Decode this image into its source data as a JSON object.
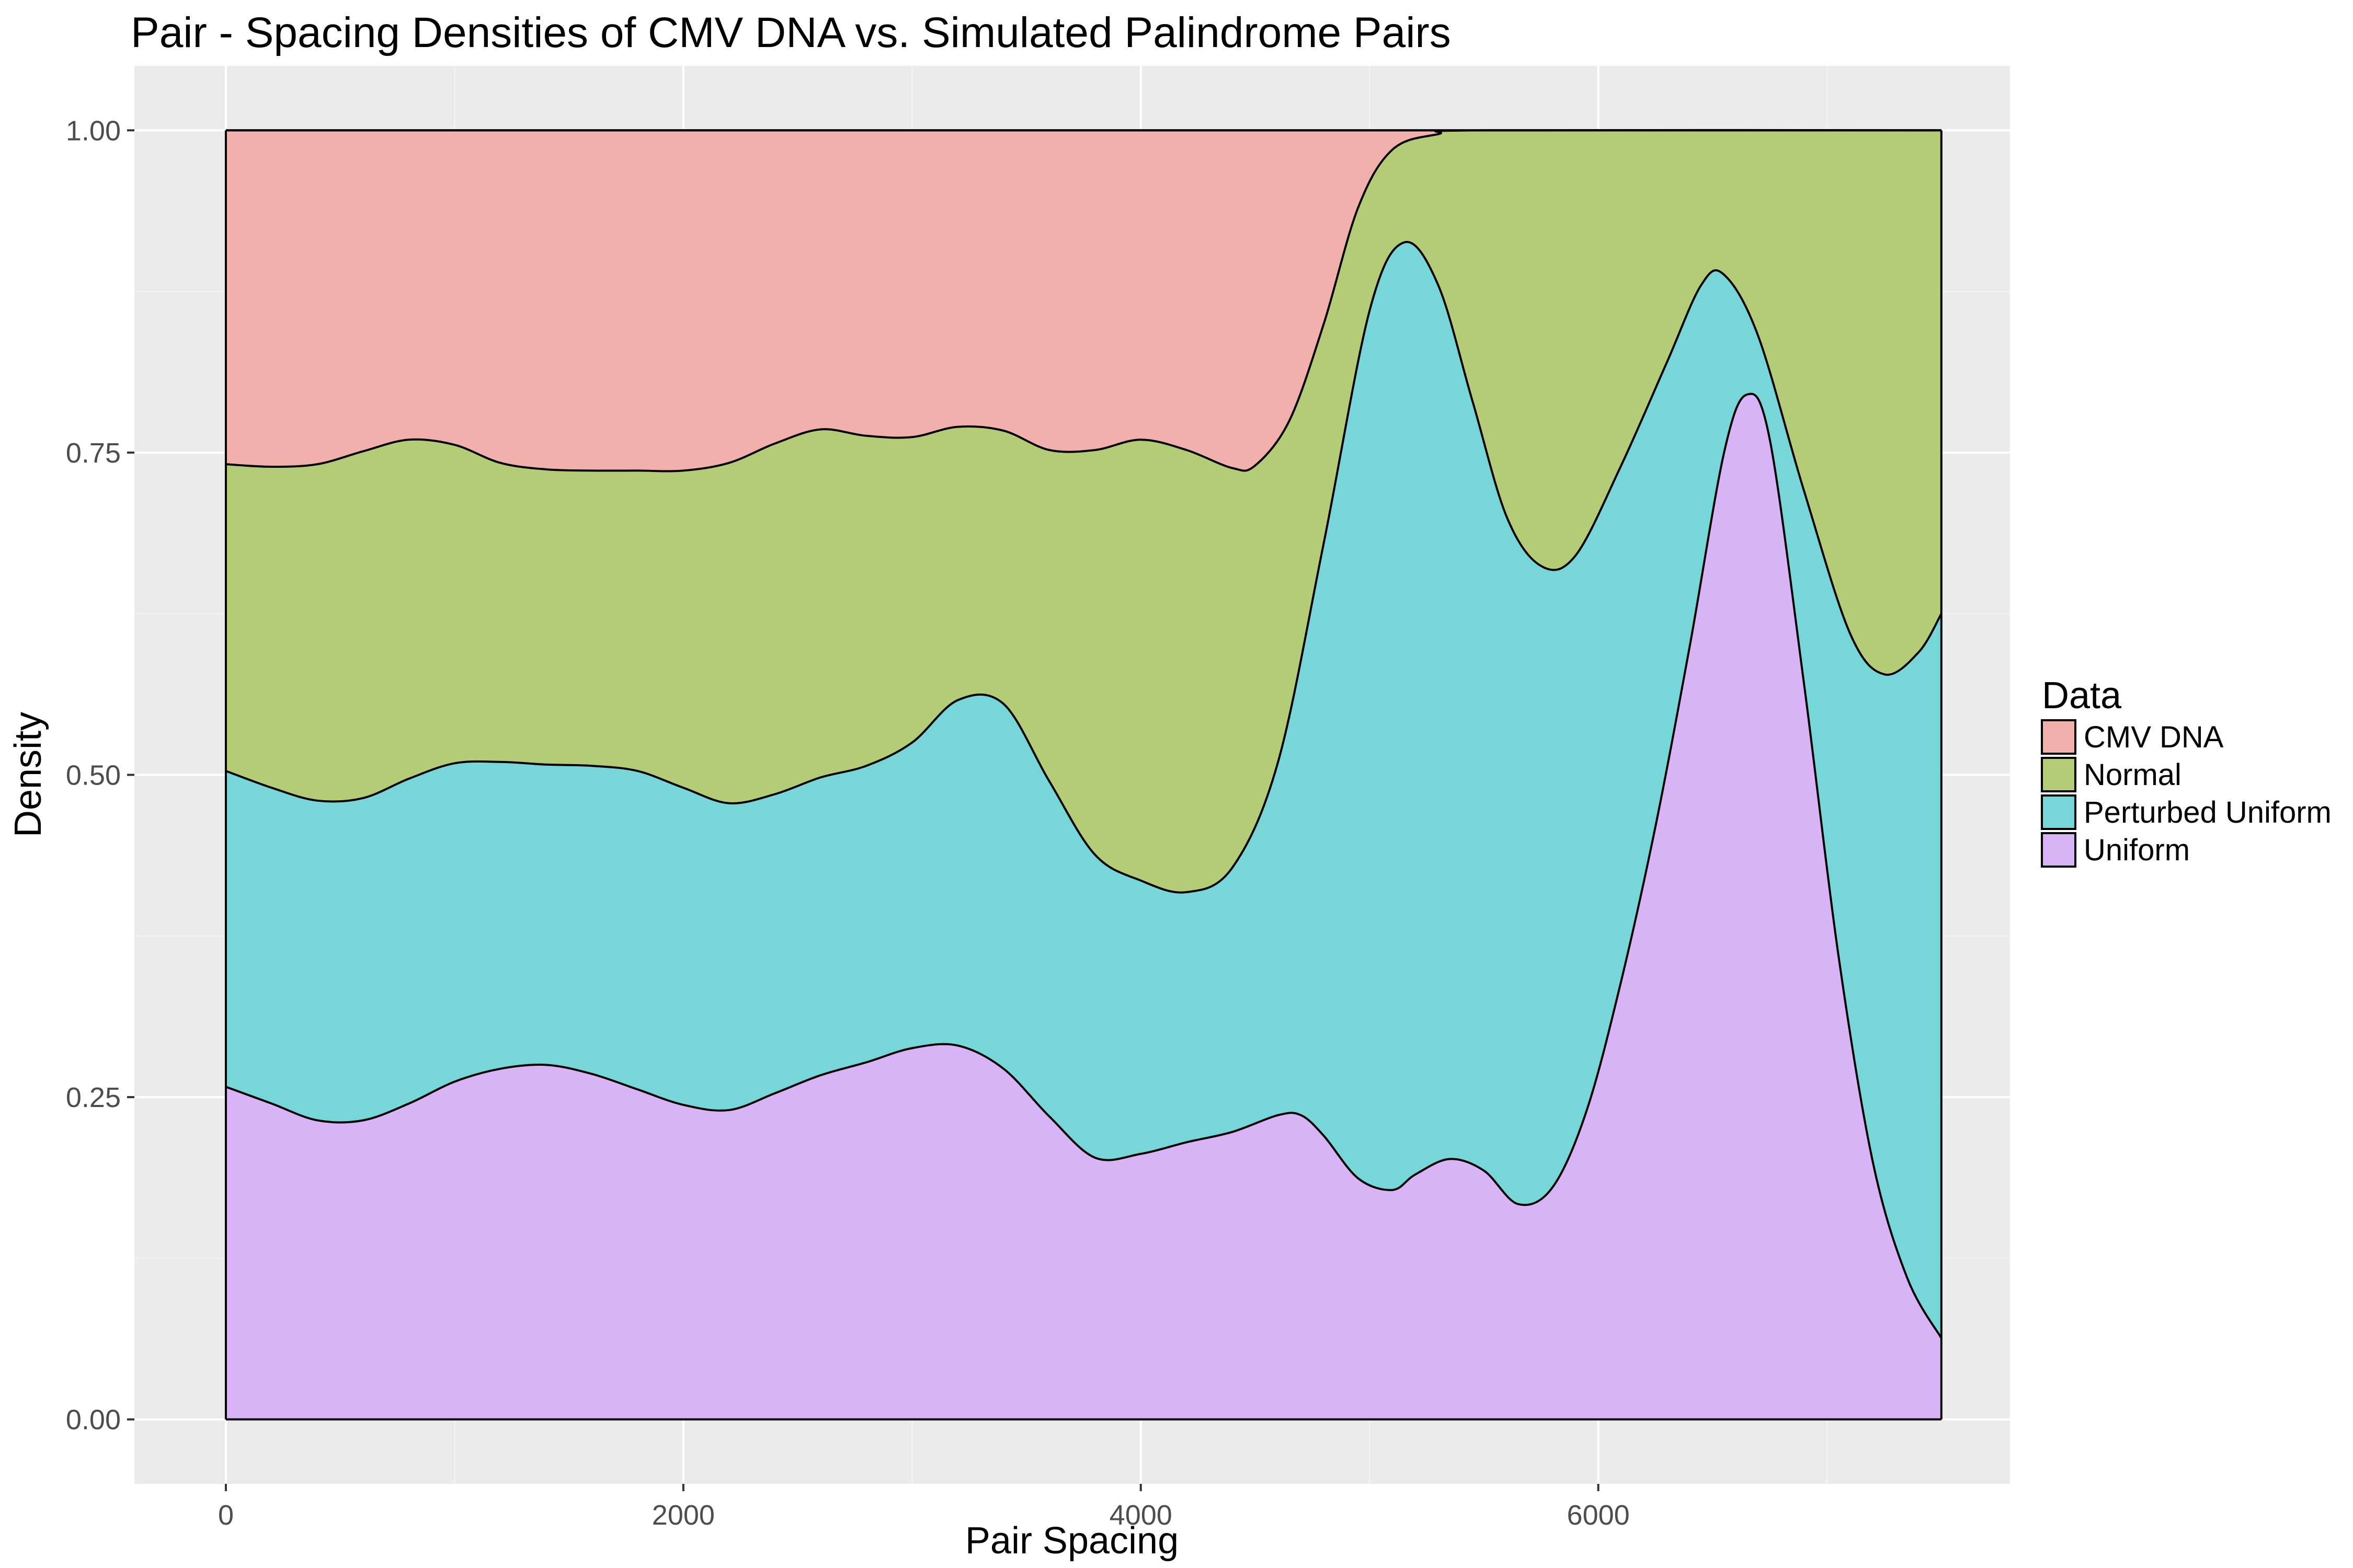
{
  "chart_data": {
    "type": "area",
    "stacking": "fill",
    "title": "Pair - Spacing Densities of CMV DNA vs. Simulated Palindrome Pairs",
    "xlabel": "Pair Spacing",
    "ylabel": "Density",
    "xlim": [
      -400,
      7800
    ],
    "ylim": [
      -0.05,
      1.05
    ],
    "x_ticks": [
      0,
      2000,
      4000,
      6000
    ],
    "x_tick_labels": [
      "0",
      "2000",
      "4000",
      "6000"
    ],
    "y_ticks": [
      0,
      0.25,
      0.5,
      0.75,
      1.0
    ],
    "y_tick_labels": [
      "0.00",
      "0.25",
      "0.50",
      "0.75",
      "1.00"
    ],
    "grid": true,
    "panel_background": "#ebebeb",
    "legend": {
      "title": "Data",
      "position": "right",
      "entries": [
        "CMV DNA",
        "Normal",
        "Perturbed Uniform",
        "Uniform"
      ]
    },
    "series": [
      {
        "name": "Uniform",
        "color": "#d8b3f5",
        "boundary": "upper",
        "points": [
          [
            0,
            0.258
          ],
          [
            200,
            0.245
          ],
          [
            400,
            0.232
          ],
          [
            600,
            0.232
          ],
          [
            800,
            0.245
          ],
          [
            1000,
            0.262
          ],
          [
            1200,
            0.272
          ],
          [
            1400,
            0.275
          ],
          [
            1600,
            0.268
          ],
          [
            1800,
            0.256
          ],
          [
            2000,
            0.244
          ],
          [
            2200,
            0.24
          ],
          [
            2400,
            0.253
          ],
          [
            2600,
            0.267
          ],
          [
            2800,
            0.277
          ],
          [
            3000,
            0.288
          ],
          [
            3200,
            0.29
          ],
          [
            3400,
            0.272
          ],
          [
            3600,
            0.235
          ],
          [
            3800,
            0.203
          ],
          [
            4000,
            0.206
          ],
          [
            4200,
            0.215
          ],
          [
            4400,
            0.223
          ],
          [
            4600,
            0.236
          ],
          [
            4700,
            0.236
          ],
          [
            4800,
            0.22
          ],
          [
            4950,
            0.187
          ],
          [
            5100,
            0.178
          ],
          [
            5200,
            0.19
          ],
          [
            5350,
            0.202
          ],
          [
            5500,
            0.193
          ],
          [
            5650,
            0.167
          ],
          [
            5800,
            0.18
          ],
          [
            5950,
            0.24
          ],
          [
            6100,
            0.34
          ],
          [
            6250,
            0.46
          ],
          [
            6400,
            0.6
          ],
          [
            6550,
            0.75
          ],
          [
            6650,
            0.795
          ],
          [
            6750,
            0.76
          ],
          [
            6900,
            0.57
          ],
          [
            7050,
            0.36
          ],
          [
            7200,
            0.2
          ],
          [
            7350,
            0.11
          ],
          [
            7500,
            0.063
          ]
        ]
      },
      {
        "name": "Perturbed Uniform",
        "color": "#76d6d8",
        "boundary": "upper",
        "points": [
          [
            0,
            0.503
          ],
          [
            200,
            0.49
          ],
          [
            400,
            0.48
          ],
          [
            600,
            0.482
          ],
          [
            800,
            0.497
          ],
          [
            1000,
            0.509
          ],
          [
            1200,
            0.51
          ],
          [
            1400,
            0.508
          ],
          [
            1600,
            0.507
          ],
          [
            1800,
            0.503
          ],
          [
            2000,
            0.49
          ],
          [
            2200,
            0.478
          ],
          [
            2400,
            0.485
          ],
          [
            2600,
            0.498
          ],
          [
            2800,
            0.507
          ],
          [
            3000,
            0.525
          ],
          [
            3200,
            0.558
          ],
          [
            3400,
            0.555
          ],
          [
            3600,
            0.495
          ],
          [
            3800,
            0.438
          ],
          [
            4000,
            0.418
          ],
          [
            4200,
            0.409
          ],
          [
            4400,
            0.428
          ],
          [
            4600,
            0.51
          ],
          [
            4800,
            0.68
          ],
          [
            5000,
            0.86
          ],
          [
            5150,
            0.913
          ],
          [
            5300,
            0.88
          ],
          [
            5450,
            0.79
          ],
          [
            5600,
            0.7
          ],
          [
            5750,
            0.662
          ],
          [
            5900,
            0.67
          ],
          [
            6100,
            0.74
          ],
          [
            6300,
            0.82
          ],
          [
            6450,
            0.88
          ],
          [
            6550,
            0.888
          ],
          [
            6700,
            0.84
          ],
          [
            6900,
            0.72
          ],
          [
            7100,
            0.61
          ],
          [
            7250,
            0.578
          ],
          [
            7400,
            0.595
          ],
          [
            7500,
            0.625
          ]
        ]
      },
      {
        "name": "Normal",
        "color": "#b5cc77",
        "boundary": "upper",
        "points": [
          [
            0,
            0.741
          ],
          [
            200,
            0.739
          ],
          [
            400,
            0.741
          ],
          [
            600,
            0.751
          ],
          [
            800,
            0.76
          ],
          [
            1000,
            0.756
          ],
          [
            1200,
            0.742
          ],
          [
            1400,
            0.737
          ],
          [
            1600,
            0.736
          ],
          [
            1800,
            0.736
          ],
          [
            2000,
            0.736
          ],
          [
            2200,
            0.742
          ],
          [
            2400,
            0.757
          ],
          [
            2600,
            0.768
          ],
          [
            2800,
            0.763
          ],
          [
            3000,
            0.762
          ],
          [
            3200,
            0.77
          ],
          [
            3400,
            0.767
          ],
          [
            3600,
            0.752
          ],
          [
            3800,
            0.752
          ],
          [
            4000,
            0.76
          ],
          [
            4200,
            0.752
          ],
          [
            4400,
            0.738
          ],
          [
            4500,
            0.74
          ],
          [
            4650,
            0.775
          ],
          [
            4800,
            0.85
          ],
          [
            4950,
            0.94
          ],
          [
            5100,
            0.985
          ],
          [
            5300,
            0.997
          ],
          [
            5500,
            1.0
          ],
          [
            7500,
            1.0
          ]
        ]
      },
      {
        "name": "CMV DNA",
        "color": "#f1b0ac",
        "boundary": "upper",
        "points": [
          [
            0,
            1.0
          ],
          [
            7500,
            1.0
          ]
        ]
      }
    ]
  }
}
